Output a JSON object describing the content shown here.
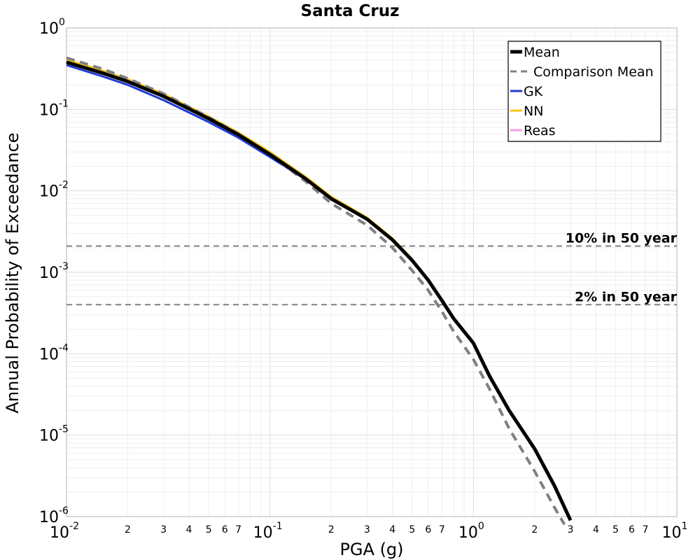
{
  "chart_data": {
    "type": "line",
    "title": "Santa Cruz",
    "xlabel": "PGA (g)",
    "ylabel": "Annual Probability of Exceedance",
    "xscale": "log",
    "yscale": "log",
    "xlim": [
      0.01,
      10
    ],
    "ylim": [
      1e-06,
      1
    ],
    "grid": true,
    "legend_position": "top-right",
    "x_major_ticks": [
      {
        "base": "10",
        "exp": "-2",
        "value": 0.01
      },
      {
        "base": "10",
        "exp": "-1",
        "value": 0.1
      },
      {
        "base": "10",
        "exp": "0",
        "value": 1
      },
      {
        "base": "10",
        "exp": "1",
        "value": 10
      }
    ],
    "x_minor_labels": [
      "2",
      "3",
      "4",
      "5",
      "6",
      "7"
    ],
    "y_major_ticks": [
      {
        "base": "10",
        "exp": "0",
        "value": 1
      },
      {
        "base": "10",
        "exp": "-1",
        "value": 0.1
      },
      {
        "base": "10",
        "exp": "-2",
        "value": 0.01
      },
      {
        "base": "10",
        "exp": "-3",
        "value": 0.001
      },
      {
        "base": "10",
        "exp": "-4",
        "value": 0.0001
      },
      {
        "base": "10",
        "exp": "-5",
        "value": 1e-05
      },
      {
        "base": "10",
        "exp": "-6",
        "value": 1e-06
      }
    ],
    "reference_lines": [
      {
        "label": "10% in 50 year",
        "y": 0.0021,
        "color": "#808080"
      },
      {
        "label": "2% in 50 year",
        "y": 0.0004,
        "color": "#808080"
      }
    ],
    "series": [
      {
        "name": "Mean",
        "color": "#000000",
        "style": "solid",
        "x": [
          0.01,
          0.015,
          0.02,
          0.03,
          0.05,
          0.07,
          0.1,
          0.15,
          0.2,
          0.3,
          0.4,
          0.5,
          0.6,
          0.7,
          0.8,
          1.0,
          1.2,
          1.5,
          2.0,
          2.5,
          3.0
        ],
        "y": [
          0.38,
          0.28,
          0.22,
          0.145,
          0.077,
          0.049,
          0.028,
          0.014,
          0.008,
          0.0045,
          0.0025,
          0.0014,
          0.0008,
          0.00045,
          0.00027,
          0.000135,
          5.32e-05,
          2e-05,
          6.8e-06,
          2.4e-06,
          9e-07
        ]
      },
      {
        "name": "Comparison Mean",
        "color": "#808080",
        "style": "dashed",
        "x": [
          0.01,
          0.015,
          0.02,
          0.03,
          0.05,
          0.07,
          0.1,
          0.15,
          0.2,
          0.3,
          0.4,
          0.5,
          0.6,
          0.7,
          0.8,
          1.0,
          1.2,
          1.5,
          2.0,
          2.5,
          2.8
        ],
        "y": [
          0.43,
          0.315,
          0.24,
          0.156,
          0.08,
          0.05,
          0.028,
          0.013,
          0.007,
          0.0038,
          0.002,
          0.00105,
          0.0006,
          0.00033,
          0.000187,
          8.5e-05,
          3.7e-05,
          1.2e-05,
          3.6e-06,
          1.3e-06,
          8e-07
        ]
      },
      {
        "name": "GK",
        "color": "#1f3bd6",
        "style": "solid",
        "x": [
          0.01,
          0.015,
          0.02,
          0.03,
          0.05,
          0.07,
          0.1,
          0.15,
          0.2,
          0.3,
          0.4,
          0.5
        ],
        "y": [
          0.35,
          0.255,
          0.2,
          0.13,
          0.07,
          0.045,
          0.026,
          0.0138,
          0.008,
          0.0045,
          0.0025,
          0.0014
        ]
      },
      {
        "name": "NN",
        "color": "#f5c518",
        "style": "solid",
        "x": [
          0.01,
          0.015,
          0.02,
          0.03,
          0.05,
          0.07,
          0.1,
          0.15,
          0.2,
          0.3,
          0.4,
          0.5
        ],
        "y": [
          0.41,
          0.3,
          0.235,
          0.155,
          0.082,
          0.052,
          0.03,
          0.0148,
          0.0085,
          0.0047,
          0.0026,
          0.00145
        ]
      },
      {
        "name": "Reas",
        "color": "#f59be3",
        "style": "solid",
        "x": [],
        "y": []
      }
    ]
  }
}
